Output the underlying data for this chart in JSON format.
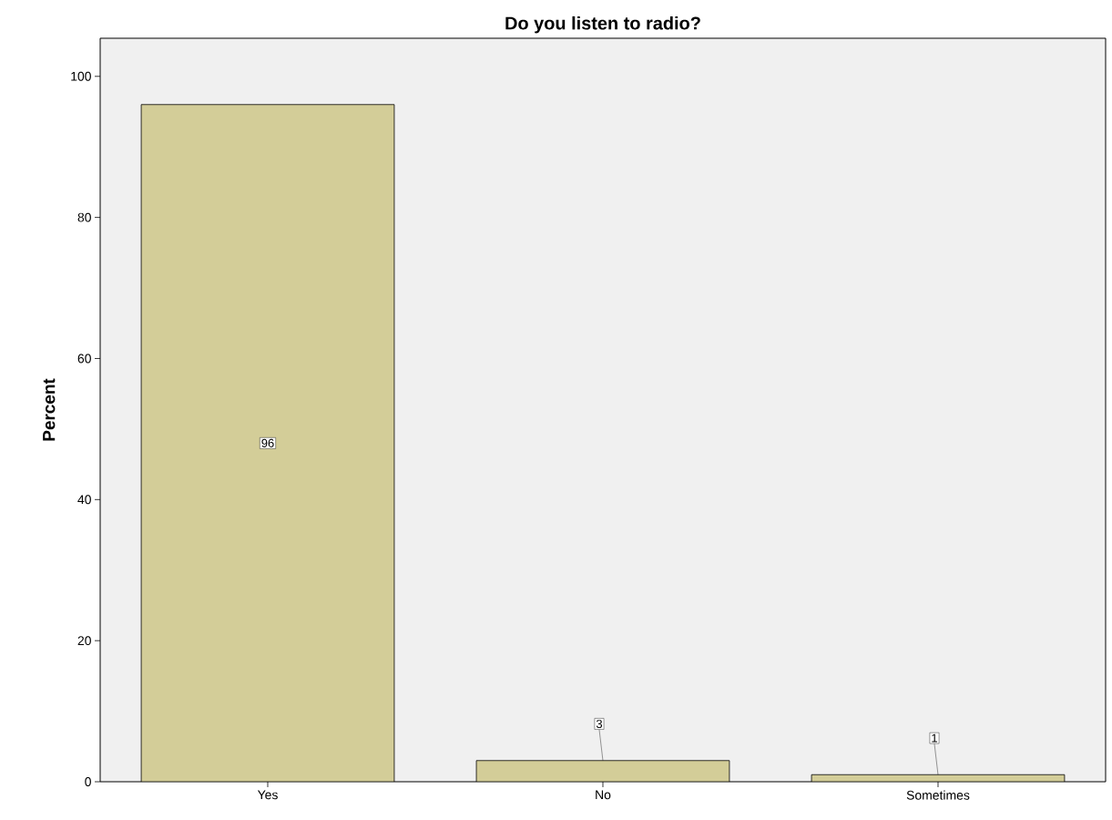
{
  "chart_data": {
    "type": "bar",
    "title": "Do you listen to radio?",
    "ylabel": "Percent",
    "categories": [
      "Yes",
      "No",
      "Sometimes"
    ],
    "values": [
      96,
      3,
      1
    ],
    "color": "#d3cd98",
    "ylim": [
      0,
      105.4
    ],
    "yticks": [
      0,
      20,
      40,
      60,
      80,
      100
    ],
    "data_labels": true,
    "grid": false
  }
}
